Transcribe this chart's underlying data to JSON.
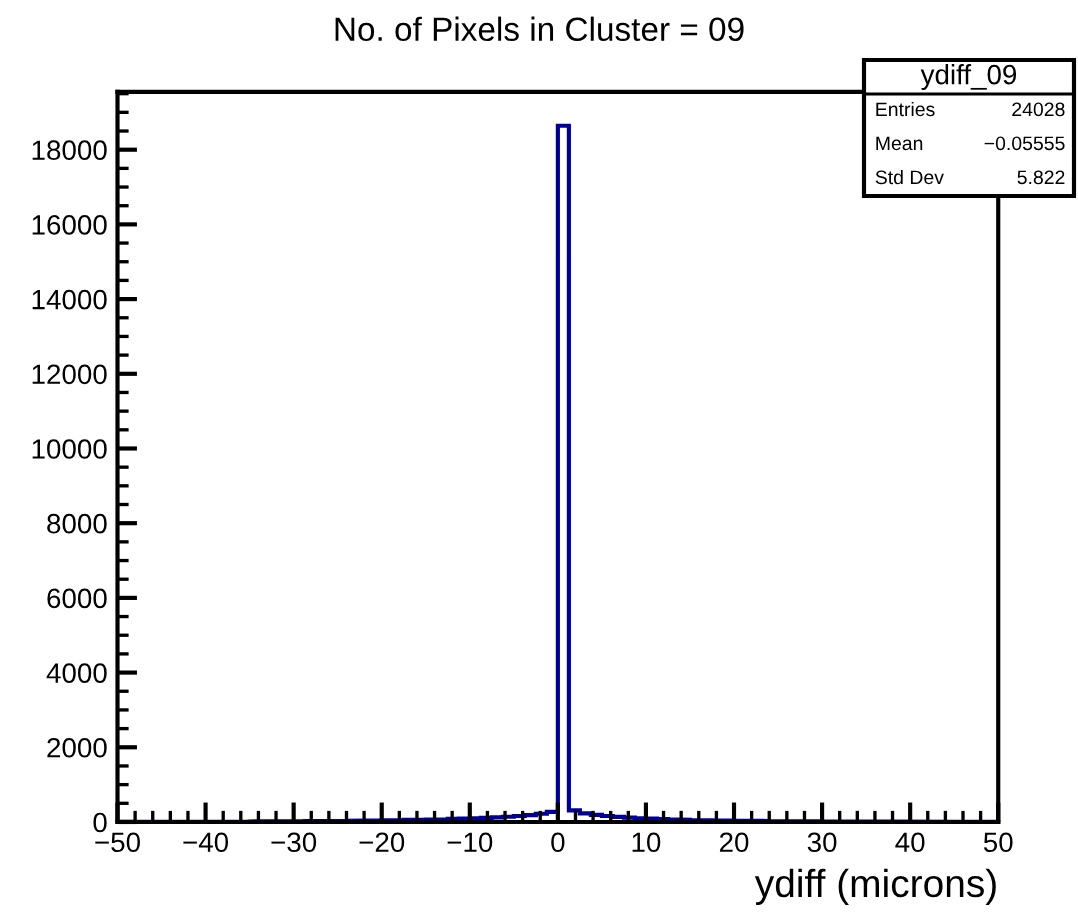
{
  "chart_data": {
    "type": "histogram",
    "title": "No. of Pixels in Cluster = 09",
    "xlabel": "ydiff (microns)",
    "bins": [
      -50,
      -48.75,
      -47.5,
      -46.25,
      -45,
      -43.75,
      -42.5,
      -41.25,
      -40,
      -38.75,
      -37.5,
      -36.25,
      -35,
      -33.75,
      -32.5,
      -31.25,
      -30,
      -28.75,
      -27.5,
      -26.25,
      -25,
      -23.75,
      -22.5,
      -21.25,
      -20,
      -18.75,
      -17.5,
      -16.25,
      -15,
      -13.75,
      -12.5,
      -11.25,
      -10,
      -8.75,
      -7.5,
      -6.25,
      -5,
      -3.75,
      -2.5,
      -1.25,
      0,
      1.25,
      2.5,
      3.75,
      5,
      6.25,
      7.5,
      8.75,
      10,
      11.25,
      12.5,
      13.75,
      15,
      16.25,
      17.5,
      18.75,
      20,
      21.25,
      22.5,
      23.75,
      25,
      26.25,
      27.5,
      28.75,
      30,
      31.25,
      32.5,
      33.75,
      35,
      36.25,
      37.5,
      38.75,
      40,
      41.25,
      42.5,
      43.75,
      45,
      46.25,
      47.5,
      48.75,
      50
    ],
    "values": [
      5,
      5,
      6,
      6,
      7,
      8,
      8,
      9,
      10,
      11,
      12,
      13,
      14,
      16,
      17,
      19,
      21,
      23,
      25,
      28,
      31,
      34,
      37,
      41,
      45,
      50,
      55,
      61,
      67,
      74,
      82,
      91,
      100,
      112,
      125,
      140,
      160,
      185,
      220,
      270,
      18640,
      310,
      230,
      190,
      160,
      135,
      115,
      100,
      88,
      77,
      68,
      60,
      53,
      47,
      42,
      37,
      33,
      30,
      27,
      24,
      22,
      20,
      18,
      16,
      15,
      14,
      13,
      12,
      11,
      10,
      9,
      9,
      8,
      8,
      7,
      7,
      6,
      6,
      5,
      5
    ],
    "color": "#000099",
    "xlim": [
      -50,
      50
    ],
    "xticks": [
      -50,
      -40,
      -30,
      -20,
      -10,
      0,
      10,
      20,
      30,
      40,
      50
    ],
    "ylim": [
      0,
      19550
    ],
    "yticks": [
      0,
      2000,
      4000,
      6000,
      8000,
      10000,
      12000,
      14000,
      16000,
      18000
    ],
    "grid": false,
    "legend": false,
    "annotations": [
      "ydiff_09",
      "Entries",
      "24028",
      "Mean",
      "−0.05555",
      "Std Dev",
      "5.822"
    ]
  }
}
